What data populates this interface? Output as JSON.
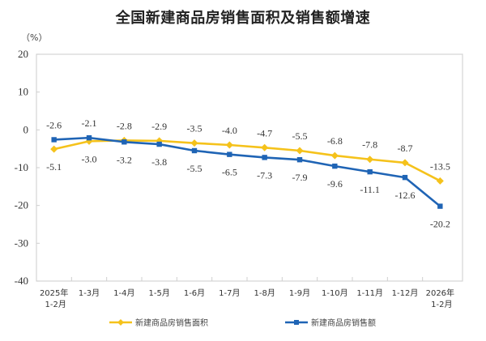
{
  "title": "全国新建商品房销售面积及销售额增速",
  "unit_label": "（%）",
  "colors": {
    "area": "#F5C21B",
    "amount": "#1F64B5",
    "frame": "#d4d4d4"
  },
  "legend": {
    "area_label": "新建商品房销售面积",
    "amount_label": "新建商品房销售额"
  },
  "chart_data": {
    "type": "line",
    "title": "全国新建商品房销售面积及销售额增速",
    "xlabel": "",
    "ylabel": "（%）",
    "ylim": [
      -40,
      20
    ],
    "yticks": [
      20,
      10,
      0,
      -10,
      -20,
      -30,
      -40
    ],
    "grid": false,
    "legend_position": "bottom",
    "categories": [
      [
        "2025年",
        "1-2月"
      ],
      [
        "1-3月"
      ],
      [
        "1-4月"
      ],
      [
        "1-5月"
      ],
      [
        "1-6月"
      ],
      [
        "1-7月"
      ],
      [
        "1-8月"
      ],
      [
        "1-9月"
      ],
      [
        "1-10月"
      ],
      [
        "1-11月"
      ],
      [
        "1-12月"
      ],
      [
        "2026年",
        "1-2月"
      ]
    ],
    "series": [
      {
        "name": "新建商品房销售面积",
        "color": "#F5C21B",
        "marker": "diamond",
        "values": [
          -5.1,
          -3.0,
          -2.8,
          -2.9,
          -3.5,
          -4.0,
          -4.7,
          -5.5,
          -6.8,
          -7.8,
          -8.7,
          -13.5
        ],
        "label_positions": [
          "below",
          "below",
          "above",
          "above",
          "above",
          "above",
          "above",
          "above",
          "above",
          "above",
          "above",
          "above"
        ]
      },
      {
        "name": "新建商品房销售额",
        "color": "#1F64B5",
        "marker": "square",
        "values": [
          -2.6,
          -2.1,
          -3.2,
          -3.8,
          -5.5,
          -6.5,
          -7.3,
          -7.9,
          -9.6,
          -11.1,
          -12.6,
          -20.2
        ],
        "label_positions": [
          "above",
          "above",
          "below",
          "below",
          "below",
          "below",
          "below",
          "below",
          "below",
          "below",
          "below",
          "below"
        ]
      }
    ]
  }
}
